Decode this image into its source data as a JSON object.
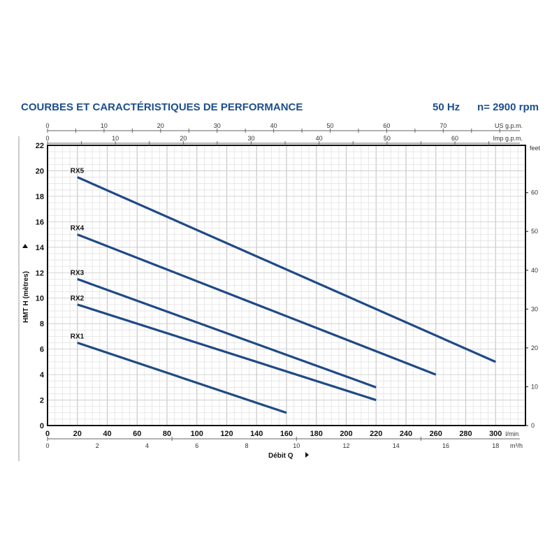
{
  "chart_data": {
    "type": "line",
    "title": "COURBES ET CARACTÉRISTIQUES DE PERFORMANCE",
    "subtitle_freq": "50 Hz",
    "subtitle_speed": "n= 2900 rpm",
    "xlabel": "Débit Q",
    "ylabel": "HMT H (mètres)",
    "x_unit": "l/min",
    "xlim": [
      0,
      320
    ],
    "ylim": [
      0,
      22
    ],
    "grid": true,
    "x_ticks": [
      0,
      20,
      40,
      60,
      80,
      100,
      120,
      140,
      160,
      180,
      200,
      220,
      240,
      260,
      280,
      300
    ],
    "y_ticks": [
      0,
      2,
      4,
      6,
      8,
      10,
      12,
      14,
      16,
      18,
      20,
      22
    ],
    "secondary_axes": {
      "us_gpm": {
        "label": "US g.p.m.",
        "ticks": [
          0,
          10,
          20,
          30,
          40,
          50,
          60,
          70
        ]
      },
      "imp_gpm": {
        "label": "Imp g.p.m.",
        "ticks": [
          0,
          10,
          20,
          30,
          40,
          50,
          60
        ]
      },
      "m3h": {
        "label": "m³/h",
        "ticks": [
          0,
          2,
          4,
          6,
          8,
          10,
          12,
          14,
          16,
          18
        ]
      },
      "feet": {
        "label": "feet",
        "ticks": [
          0,
          10,
          20,
          30,
          40,
          50,
          60
        ]
      }
    },
    "series": [
      {
        "name": "RX5",
        "x": [
          20,
          300
        ],
        "y": [
          19.5,
          5
        ]
      },
      {
        "name": "RX4",
        "x": [
          20,
          260
        ],
        "y": [
          15,
          4
        ]
      },
      {
        "name": "RX3",
        "x": [
          20,
          220
        ],
        "y": [
          11.5,
          3
        ]
      },
      {
        "name": "RX2",
        "x": [
          20,
          220
        ],
        "y": [
          9.5,
          2
        ]
      },
      {
        "name": "RX1",
        "x": [
          20,
          160
        ],
        "y": [
          6.5,
          1
        ]
      }
    ],
    "colors": {
      "title": "#1d4f8c",
      "line": "#1f4a86"
    }
  }
}
